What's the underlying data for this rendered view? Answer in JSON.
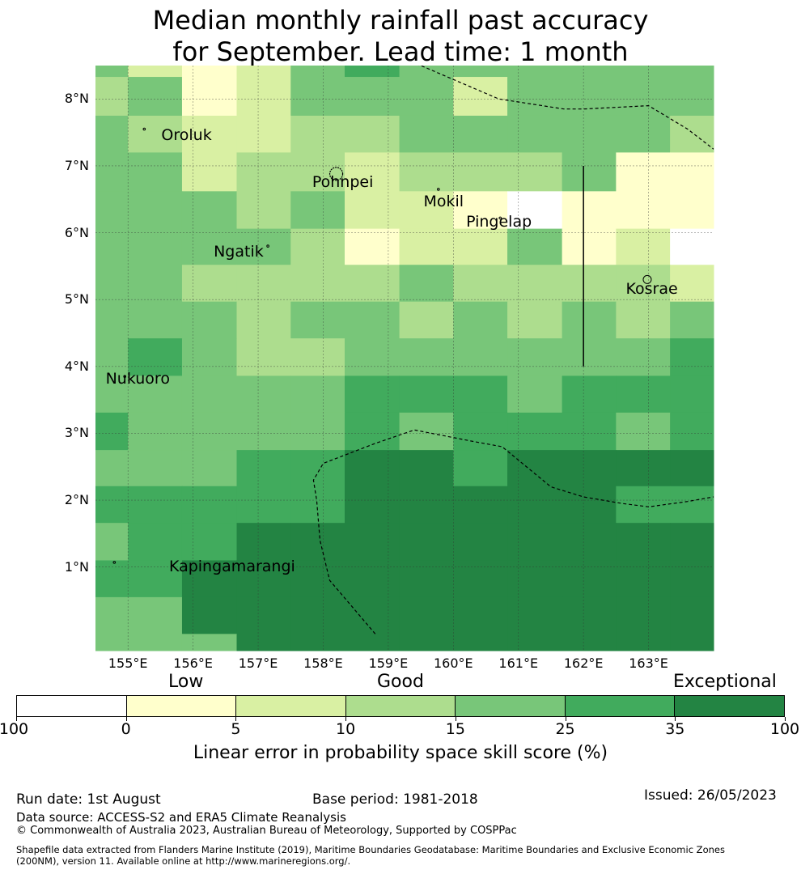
{
  "title_line1": "Median monthly rainfall past accuracy",
  "title_line2": "for September. Lead time: 1 month",
  "map": {
    "extent": {
      "lon_min": 154.5,
      "lon_max": 164.0,
      "lat_min": -0.25,
      "lat_max": 8.5
    },
    "lat_ticks": [
      {
        "value": 8,
        "label": "8°N"
      },
      {
        "value": 7,
        "label": "7°N"
      },
      {
        "value": 6,
        "label": "6°N"
      },
      {
        "value": 5,
        "label": "5°N"
      },
      {
        "value": 4,
        "label": "4°N"
      },
      {
        "value": 3,
        "label": "3°N"
      },
      {
        "value": 2,
        "label": "2°N"
      },
      {
        "value": 1,
        "label": "1°N"
      }
    ],
    "lon_ticks": [
      {
        "value": 155,
        "label": "155°E"
      },
      {
        "value": 156,
        "label": "156°E"
      },
      {
        "value": 157,
        "label": "157°E"
      },
      {
        "value": 158,
        "label": "158°E"
      },
      {
        "value": 159,
        "label": "159°E"
      },
      {
        "value": 160,
        "label": "160°E"
      },
      {
        "value": 161,
        "label": "161°E"
      },
      {
        "value": 162,
        "label": "162°E"
      },
      {
        "value": 163,
        "label": "163°E"
      }
    ],
    "places": [
      {
        "name": "Oroluk",
        "lon": 155.9,
        "lat": 7.45
      },
      {
        "name": "Pohnpei",
        "lon": 158.3,
        "lat": 6.75
      },
      {
        "name": "Mokil",
        "lon": 159.85,
        "lat": 6.45
      },
      {
        "name": "Pingelap",
        "lon": 160.7,
        "lat": 6.15
      },
      {
        "name": "Ngatik",
        "lon": 156.7,
        "lat": 5.7
      },
      {
        "name": "Kosrae",
        "lon": 163.05,
        "lat": 5.15
      },
      {
        "name": "Nukuoro",
        "lon": 155.15,
        "lat": 3.8
      },
      {
        "name": "Kapingamarangi",
        "lon": 156.6,
        "lat": 1.0
      }
    ],
    "vertical_line": {
      "lon": 162.0,
      "lat_from": 4.0,
      "lat_to": 7.0
    },
    "boundaries": [
      [
        [
          159.0,
          8.6
        ],
        [
          159.5,
          8.5
        ],
        [
          160.7,
          8.0
        ],
        [
          161.7,
          7.85
        ],
        [
          162.0,
          7.85
        ],
        [
          163.0,
          7.9
        ],
        [
          163.6,
          7.55
        ],
        [
          164.0,
          7.25
        ]
      ],
      [
        [
          158.8,
          0.0
        ],
        [
          158.1,
          0.8
        ],
        [
          157.95,
          1.4
        ],
        [
          157.9,
          2.0
        ],
        [
          157.85,
          2.3
        ],
        [
          158.0,
          2.55
        ],
        [
          158.8,
          2.85
        ],
        [
          159.4,
          3.05
        ],
        [
          160.3,
          2.88
        ],
        [
          160.75,
          2.8
        ],
        [
          161.5,
          2.2
        ],
        [
          162.0,
          2.05
        ],
        [
          162.6,
          1.95
        ],
        [
          163.0,
          1.9
        ],
        [
          163.6,
          1.98
        ],
        [
          164.0,
          2.05
        ]
      ]
    ],
    "islands": [
      {
        "name": "Pohnpei",
        "lon": 158.2,
        "lat": 6.88
      },
      {
        "name": "Kosrae",
        "lon": 162.98,
        "lat": 5.3
      },
      {
        "name": "Oroluk",
        "lon": 155.25,
        "lat": 7.55
      },
      {
        "name": "Mokil",
        "lon": 159.77,
        "lat": 6.65
      },
      {
        "name": "Pingelap",
        "lon": 160.72,
        "lat": 6.22
      },
      {
        "name": "Ngatik",
        "lon": 157.15,
        "lat": 5.8
      },
      {
        "name": "Nukuoro",
        "lon": 154.95,
        "lat": 3.85
      },
      {
        "name": "Kapingamarangi",
        "lon": 154.79,
        "lat": 1.07
      }
    ],
    "grid": {
      "lon_edges": [
        154.5,
        155.0,
        155.83,
        156.67,
        157.5,
        158.33,
        159.17,
        160.0,
        160.83,
        161.67,
        162.5,
        163.33,
        164.0
      ],
      "lat_edges": [
        8.5,
        8.33,
        7.75,
        7.2,
        6.62,
        6.06,
        5.52,
        4.97,
        4.42,
        3.86,
        3.31,
        2.75,
        2.21,
        1.66,
        1.1,
        0.55,
        0.0,
        -0.25
      ],
      "cells": [
        [
          4,
          2,
          1,
          2,
          4,
          5,
          4,
          4,
          4,
          4,
          4,
          4
        ],
        [
          3,
          4,
          1,
          2,
          4,
          4,
          4,
          2,
          4,
          4,
          4,
          4
        ],
        [
          4,
          3,
          2,
          2,
          3,
          3,
          4,
          4,
          4,
          4,
          4,
          3
        ],
        [
          4,
          4,
          2,
          3,
          3,
          2,
          3,
          3,
          3,
          4,
          1,
          1
        ],
        [
          4,
          4,
          4,
          3,
          4,
          2,
          2,
          1,
          0,
          1,
          1,
          1
        ],
        [
          4,
          4,
          4,
          4,
          3,
          1,
          2,
          2,
          4,
          1,
          2,
          0
        ],
        [
          4,
          4,
          3,
          3,
          3,
          3,
          4,
          3,
          3,
          3,
          3,
          2
        ],
        [
          4,
          4,
          4,
          3,
          4,
          4,
          3,
          4,
          3,
          4,
          3,
          4
        ],
        [
          4,
          5,
          4,
          3,
          3,
          4,
          4,
          4,
          4,
          4,
          4,
          5
        ],
        [
          4,
          4,
          4,
          4,
          4,
          5,
          5,
          5,
          4,
          5,
          5,
          5
        ],
        [
          5,
          4,
          4,
          4,
          4,
          5,
          4,
          5,
          5,
          5,
          4,
          5
        ],
        [
          4,
          4,
          4,
          5,
          5,
          6,
          6,
          5,
          6,
          6,
          6,
          6
        ],
        [
          5,
          5,
          5,
          5,
          5,
          6,
          6,
          6,
          6,
          6,
          5,
          5
        ],
        [
          4,
          5,
          5,
          6,
          6,
          6,
          6,
          6,
          6,
          6,
          6,
          6
        ],
        [
          5,
          5,
          6,
          6,
          6,
          6,
          6,
          6,
          6,
          6,
          6,
          6
        ],
        [
          4,
          4,
          6,
          6,
          6,
          6,
          6,
          6,
          6,
          6,
          6,
          6
        ],
        [
          4,
          4,
          4,
          6,
          6,
          6,
          6,
          6,
          6,
          6,
          6,
          6
        ]
      ]
    }
  },
  "colorbar": {
    "colors": [
      "#ffffff",
      "#ffffcc",
      "#d9f0a3",
      "#addd8e",
      "#78c679",
      "#41ab5d",
      "#238443"
    ],
    "tick_labels": [
      "-100",
      "0",
      "5",
      "10",
      "15",
      "25",
      "35",
      "100"
    ],
    "categories": [
      "Low",
      "Good",
      "Exceptional"
    ],
    "label": "Linear error in probability space skill score (%)"
  },
  "footer": {
    "run_date": "Run date: 1st August",
    "base_period": "Base period: 1981-2018",
    "issued": "Issued: 26/05/2023",
    "data_source": "Data source: ACCESS-S2 and ERA5 Climate Reanalysis",
    "copyright": "© Commonwealth of Australia 2023, Australian Bureau of Meteorology, Supported by COSPPac",
    "shapefile_line1": "Shapefile data extracted from Flanders Marine Institute (2019), Maritime Boundaries Geodatabase: Maritime Boundaries and Exclusive Economic Zones",
    "shapefile_line2": "(200NM), version 11. Available online at http://www.marineregions.org/."
  }
}
